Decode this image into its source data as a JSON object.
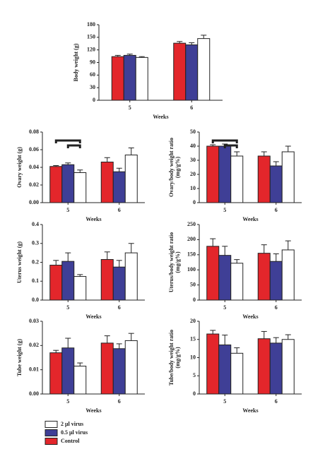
{
  "chart_data": [
    {
      "type": "bar",
      "ylabel": [
        "Body weight (g)"
      ],
      "xlabel": "Weeks",
      "categories": [
        "5",
        "6"
      ],
      "series": [
        {
          "name": "Control",
          "color": "#e3262b",
          "values": [
            104,
            136
          ],
          "errors": [
            3,
            4
          ]
        },
        {
          "name": "0.5 μl virus",
          "color": "#3f3f96",
          "values": [
            107,
            132
          ],
          "errors": [
            3,
            5
          ]
        },
        {
          "name": "2 μl virus",
          "color": "#ffffff",
          "values": [
            102,
            147
          ],
          "errors": [
            2,
            8
          ]
        }
      ],
      "ylim": [
        0,
        180
      ],
      "yticks": [
        0,
        30,
        60,
        90,
        120,
        150,
        180
      ]
    },
    {
      "type": "bar",
      "ylabel": [
        "Ovary weight (g)"
      ],
      "xlabel": "Weeks",
      "categories": [
        "5",
        "6"
      ],
      "series": [
        {
          "name": "Control",
          "color": "#e3262b",
          "values": [
            0.041,
            0.046
          ],
          "errors": [
            0.001,
            0.005
          ]
        },
        {
          "name": "0.5 μl virus",
          "color": "#3f3f96",
          "values": [
            0.043,
            0.035
          ],
          "errors": [
            0.002,
            0.004
          ]
        },
        {
          "name": "2 μl virus",
          "color": "#ffffff",
          "values": [
            0.034,
            0.054
          ],
          "errors": [
            0.003,
            0.008
          ]
        }
      ],
      "ylim": [
        0,
        0.08
      ],
      "yticks": [
        {
          "value": 0,
          "label": "0.00"
        },
        0.02,
        0.04,
        0.06,
        0.08
      ]
    },
    {
      "type": "bar",
      "ylabel": [
        "Ovary/body weight ratio",
        "(mg/g%)"
      ],
      "xlabel": "Weeks",
      "categories": [
        "5",
        "6"
      ],
      "series": [
        {
          "name": "Control",
          "color": "#e3262b",
          "values": [
            40,
            33
          ],
          "errors": [
            1,
            3
          ]
        },
        {
          "name": "0.5 μl virus",
          "color": "#3f3f96",
          "values": [
            40,
            26
          ],
          "errors": [
            1.5,
            3
          ]
        },
        {
          "name": "2 μl virus",
          "color": "#ffffff",
          "values": [
            33,
            36
          ],
          "errors": [
            3,
            4
          ]
        }
      ],
      "ylim": [
        0,
        50
      ],
      "yticks": [
        0,
        10,
        20,
        30,
        40,
        50
      ]
    },
    {
      "type": "bar",
      "ylabel": [
        "Uterus weight (g)"
      ],
      "xlabel": "Weeks",
      "categories": [
        "5",
        "6"
      ],
      "series": [
        {
          "name": "Control",
          "color": "#e3262b",
          "values": [
            0.185,
            0.215
          ],
          "errors": [
            0.025,
            0.04
          ]
        },
        {
          "name": "0.5 μl virus",
          "color": "#3f3f96",
          "values": [
            0.205,
            0.175
          ],
          "errors": [
            0.045,
            0.035
          ]
        },
        {
          "name": "2 μl virus",
          "color": "#ffffff",
          "values": [
            0.125,
            0.25
          ],
          "errors": [
            0.01,
            0.05
          ]
        }
      ],
      "ylim": [
        0,
        0.4
      ],
      "yticks": [
        {
          "value": 0,
          "label": "0.0"
        },
        0.1,
        0.2,
        0.3,
        0.4
      ]
    },
    {
      "type": "bar",
      "ylabel": [
        "Uterus/body weight ratio",
        "(mg/g%)"
      ],
      "xlabel": "Weeks",
      "categories": [
        "5",
        "6"
      ],
      "series": [
        {
          "name": "Control",
          "color": "#e3262b",
          "values": [
            178,
            155
          ],
          "errors": [
            25,
            28
          ]
        },
        {
          "name": "0.5 μl virus",
          "color": "#3f3f96",
          "values": [
            148,
            128
          ],
          "errors": [
            30,
            25
          ]
        },
        {
          "name": "2 μl virus",
          "color": "#ffffff",
          "values": [
            122,
            166
          ],
          "errors": [
            12,
            30
          ]
        }
      ],
      "ylim": [
        0,
        250
      ],
      "yticks": [
        0,
        50,
        100,
        150,
        200,
        250
      ]
    },
    {
      "type": "bar",
      "ylabel": [
        "Tube weight (g)"
      ],
      "xlabel": "Weeks",
      "categories": [
        "5",
        "6"
      ],
      "series": [
        {
          "name": "Control",
          "color": "#e3262b",
          "values": [
            0.017,
            0.021
          ],
          "errors": [
            0.001,
            0.003
          ]
        },
        {
          "name": "0.5 μl virus",
          "color": "#3f3f96",
          "values": [
            0.019,
            0.0187
          ],
          "errors": [
            0.004,
            0.002
          ]
        },
        {
          "name": "2 μl virus",
          "color": "#ffffff",
          "values": [
            0.0115,
            0.022
          ],
          "errors": [
            0.0013,
            0.003
          ]
        }
      ],
      "ylim": [
        0,
        0.03
      ],
      "yticks": [
        {
          "value": 0,
          "label": "0.00"
        },
        0.01,
        0.02,
        0.03
      ]
    },
    {
      "type": "bar",
      "ylabel": [
        "Tube/body weight ratio",
        "(mg/g%)"
      ],
      "xlabel": "Weeks",
      "categories": [
        "5",
        "6"
      ],
      "series": [
        {
          "name": "Control",
          "color": "#e3262b",
          "values": [
            16.5,
            15.2
          ],
          "errors": [
            1,
            2
          ]
        },
        {
          "name": "0.5 μl virus",
          "color": "#3f3f96",
          "values": [
            13.5,
            14
          ],
          "errors": [
            2.7,
            1.5
          ]
        },
        {
          "name": "2 μl virus",
          "color": "#ffffff",
          "values": [
            11.2,
            15
          ],
          "errors": [
            1.5,
            1.3
          ]
        }
      ],
      "ylim": [
        0,
        20
      ],
      "yticks": [
        0,
        5,
        10,
        15,
        20
      ]
    }
  ]
}
